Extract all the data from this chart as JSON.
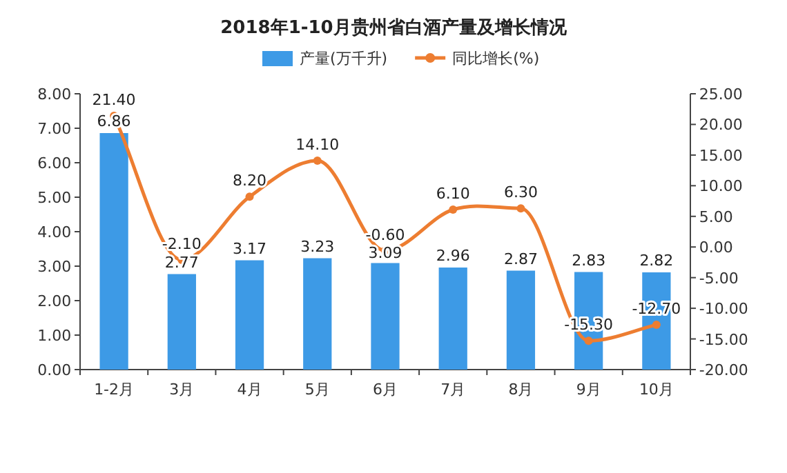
{
  "chart_data": {
    "type": "bar",
    "title": "2018年1-10月贵州省白酒产量及增长情况",
    "categories": [
      "1-2月",
      "3月",
      "4月",
      "5月",
      "6月",
      "7月",
      "8月",
      "9月",
      "10月"
    ],
    "series": [
      {
        "name": "产量(万千升)",
        "color": "#3d9ae6",
        "values": [
          6.86,
          2.77,
          3.17,
          3.23,
          3.09,
          2.96,
          2.87,
          2.83,
          2.82
        ],
        "value_labels": [
          "6.86",
          "2.77",
          "3.17",
          "3.23",
          "3.09",
          "2.96",
          "2.87",
          "2.83",
          "2.82"
        ]
      },
      {
        "name": "同比增长(%)",
        "type": "line",
        "axis": "y2",
        "color": "#ed7d31",
        "values": [
          21.4,
          -2.1,
          8.2,
          14.1,
          -0.6,
          6.1,
          6.3,
          -15.3,
          -12.7
        ],
        "value_labels": [
          "21.40",
          "-2.10",
          "8.20",
          "14.10",
          "-0.60",
          "6.10",
          "6.30",
          "-15.30",
          "-12.70"
        ]
      }
    ],
    "ylim": [
      0,
      8
    ],
    "yticks": [
      {
        "value": 0,
        "label": "0.00"
      },
      {
        "value": 1,
        "label": "1.00"
      },
      {
        "value": 2,
        "label": "2.00"
      },
      {
        "value": 3,
        "label": "3.00"
      },
      {
        "value": 4,
        "label": "4.00"
      },
      {
        "value": 5,
        "label": "5.00"
      },
      {
        "value": 6,
        "label": "6.00"
      },
      {
        "value": 7,
        "label": "7.00"
      },
      {
        "value": 8,
        "label": "8.00"
      }
    ],
    "y2lim": [
      -20,
      25
    ],
    "y2ticks": [
      {
        "value": -20,
        "label": "-20.00"
      },
      {
        "value": -15,
        "label": "-15.00"
      },
      {
        "value": -10,
        "label": "-10.00"
      },
      {
        "value": -5,
        "label": "-5.00"
      },
      {
        "value": 0,
        "label": "0.00"
      },
      {
        "value": 5,
        "label": "5.00"
      },
      {
        "value": 10,
        "label": "10.00"
      },
      {
        "value": 15,
        "label": "15.00"
      },
      {
        "value": 20,
        "label": "20.00"
      },
      {
        "value": 25,
        "label": "25.00"
      }
    ],
    "marker": "circle",
    "line_style": "solid",
    "legend": "top",
    "grid": false
  }
}
